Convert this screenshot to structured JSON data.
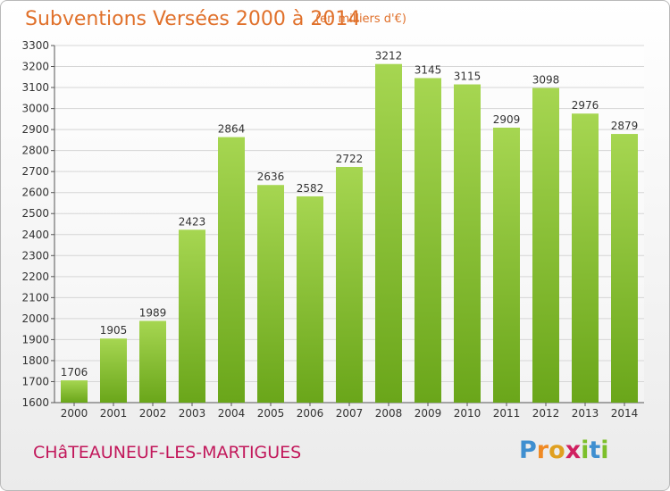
{
  "title": "Subventions Versées 2000 à 2014",
  "unit_note": "(en milliers d'€)",
  "city": "CHâTEAUNEUF-LES-MARTIGUES",
  "brand": {
    "letters": [
      "P",
      "r",
      "o",
      "x",
      "i",
      "t",
      "i"
    ],
    "colors": [
      "#3f8fd0",
      "#f08a24",
      "#e0a020",
      "#d02060",
      "#7cbf2a",
      "#3f8fd0",
      "#7cbf2a"
    ]
  },
  "colors": {
    "bar_light": "#a6d651",
    "bar_dark": "#6aa61a",
    "grid": "#d6d6d6",
    "accent": "#e0702a"
  },
  "chart_data": {
    "type": "bar",
    "categories": [
      "2000",
      "2001",
      "2002",
      "2003",
      "2004",
      "2005",
      "2006",
      "2007",
      "2008",
      "2009",
      "2010",
      "2011",
      "2012",
      "2013",
      "2014"
    ],
    "values": [
      1706,
      1905,
      1989,
      2423,
      2864,
      2636,
      2582,
      2722,
      3212,
      3145,
      3115,
      2909,
      3098,
      2976,
      2879
    ],
    "title": "Subventions Versées 2000 à 2014",
    "ylim": [
      1600,
      3300
    ],
    "yticks": [
      1600,
      1700,
      1800,
      1900,
      2000,
      2100,
      2200,
      2300,
      2400,
      2500,
      2600,
      2700,
      2800,
      2900,
      3000,
      3100,
      3200,
      3300
    ],
    "grid": true
  }
}
